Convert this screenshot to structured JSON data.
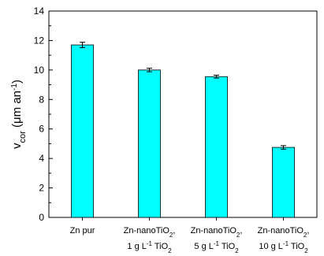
{
  "chart_data": {
    "type": "bar",
    "title": "",
    "xlabel": "",
    "ylabel": {
      "prefix": "v",
      "subscript": "cor",
      "open": " (",
      "unit_mu": "μ",
      "unit_rest": "m an",
      "exponent": "-1",
      "close": ")"
    },
    "ylim": [
      0,
      14
    ],
    "yticks": [
      0,
      2,
      4,
      6,
      8,
      10,
      12,
      14
    ],
    "categories": [
      {
        "line1": "Zn pur",
        "line2": null
      },
      {
        "line1": {
          "text": "Zn-nanoTiO",
          "sub": "2",
          "tail": ","
        },
        "line2": {
          "a": "1 g L",
          "sup": "-1",
          "b": " TiO",
          "sub": "2"
        }
      },
      {
        "line1": {
          "text": "Zn-nanoTiO",
          "sub": "2",
          "tail": ","
        },
        "line2": {
          "a": "5 g L",
          "sup": "-1",
          "b": " TiO",
          "sub": "2"
        }
      },
      {
        "line1": {
          "text": "Zn-nanoTiO",
          "sub": "2",
          "tail": ","
        },
        "line2": {
          "a": "10 g L",
          "sup": "-1",
          "b": " TiO",
          "sub": "2"
        }
      }
    ],
    "values": [
      11.7,
      10.0,
      9.55,
      4.75
    ],
    "errors": [
      0.18,
      0.12,
      0.1,
      0.12
    ],
    "bar_color": "#00FFFF",
    "grid": false,
    "legend": false
  }
}
